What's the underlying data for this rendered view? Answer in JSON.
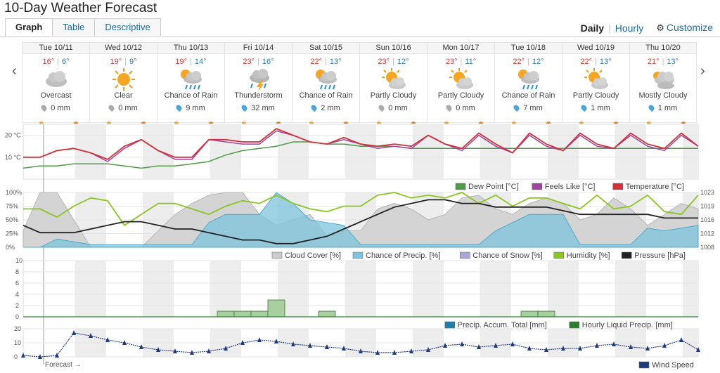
{
  "page": {
    "title": "10-Day Weather Forecast"
  },
  "tabs": [
    {
      "label": "Graph",
      "active": true
    },
    {
      "label": "Table",
      "active": false
    },
    {
      "label": "Descriptive",
      "active": false
    }
  ],
  "modes": {
    "daily": "Daily",
    "separator": "|",
    "hourly": "Hourly",
    "customize": "Customize"
  },
  "nav": {
    "prev": "‹",
    "next": "›"
  },
  "days": [
    {
      "date": "Tue 10/11",
      "hi": "16°",
      "lo": "6°",
      "condition": "Overcast",
      "precip": "0 mm",
      "icon": "cloud",
      "rain": false
    },
    {
      "date": "Wed 10/12",
      "hi": "19°",
      "lo": "9°",
      "condition": "Clear",
      "precip": "0 mm",
      "icon": "sun",
      "rain": false
    },
    {
      "date": "Thu 10/13",
      "hi": "19°",
      "lo": "14°",
      "condition": "Chance of Rain",
      "precip": "9 mm",
      "icon": "sun-cloud-rain",
      "rain": true
    },
    {
      "date": "Fri 10/14",
      "hi": "23°",
      "lo": "16°",
      "condition": "Thunderstorm",
      "precip": "32 mm",
      "icon": "storm",
      "rain": true
    },
    {
      "date": "Sat 10/15",
      "hi": "22°",
      "lo": "13°",
      "condition": "Chance of Rain",
      "precip": "2 mm",
      "icon": "sun-cloud-rain",
      "rain": true
    },
    {
      "date": "Sun 10/16",
      "hi": "23°",
      "lo": "12°",
      "condition": "Partly Cloudy",
      "precip": "0 mm",
      "icon": "sun-cloud",
      "rain": false
    },
    {
      "date": "Mon 10/17",
      "hi": "23°",
      "lo": "11°",
      "condition": "Partly Cloudy",
      "precip": "0 mm",
      "icon": "sun-cloud",
      "rain": false
    },
    {
      "date": "Tue 10/18",
      "hi": "22°",
      "lo": "12°",
      "condition": "Chance of Rain",
      "precip": "7 mm",
      "icon": "sun-cloud-rain",
      "rain": true
    },
    {
      "date": "Wed 10/19",
      "hi": "22°",
      "lo": "13°",
      "condition": "Partly Cloudy",
      "precip": "1 mm",
      "icon": "sun-cloud",
      "rain": true
    },
    {
      "date": "Thu 10/20",
      "hi": "21°",
      "lo": "13°",
      "condition": "Mostly Cloudy",
      "precip": "1 mm",
      "icon": "clouds",
      "rain": true
    }
  ],
  "colors": {
    "temp": "#d0313a",
    "feels": "#a0449e",
    "dew": "#4f9a46",
    "cloud": "#cccccc",
    "precip": "#7ec4de",
    "humidity": "#8ac521",
    "pressure": "#222222",
    "wind": "#1f3a7a",
    "accum": "#1f7fa3",
    "liquid": "#2e7d32"
  },
  "chart_data": [
    {
      "type": "line",
      "y_ticks": [
        "20 °C",
        "10 °C"
      ],
      "ylim": [
        0,
        25
      ],
      "series": [
        {
          "name": "Dew Point [°C]",
          "values": [
            5,
            6,
            6,
            7,
            7,
            7,
            6,
            5,
            6,
            6,
            7,
            8,
            11,
            13,
            14,
            15,
            17,
            17,
            16,
            16,
            15,
            15,
            15,
            14,
            14,
            14,
            14,
            14,
            14,
            14,
            14,
            14,
            14,
            14,
            14,
            14,
            14,
            14,
            14,
            14,
            14
          ]
        },
        {
          "name": "Feels Like [°C]",
          "values": [
            10,
            10,
            13,
            14,
            12,
            8,
            14,
            18,
            13,
            9,
            9,
            18,
            17,
            16,
            16,
            22,
            20,
            17,
            16,
            18,
            16,
            14,
            15,
            14,
            20,
            16,
            13,
            20,
            15,
            12,
            20,
            15,
            13,
            20,
            15,
            14,
            20,
            15,
            13,
            20,
            15
          ]
        },
        {
          "name": "Temperature [°C]",
          "values": [
            10,
            10,
            13,
            14,
            12,
            9,
            15,
            18,
            13,
            10,
            10,
            18,
            18,
            17,
            17,
            23,
            20,
            17,
            16,
            19,
            16,
            15,
            16,
            15,
            20,
            16,
            14,
            21,
            16,
            12,
            21,
            16,
            13,
            21,
            16,
            14,
            21,
            16,
            14,
            21,
            15
          ]
        }
      ]
    },
    {
      "type": "area",
      "left_ticks": [
        "100%",
        "75%",
        "50%",
        "25%",
        "0%"
      ],
      "right_ticks": [
        "1023",
        "1019",
        "1016",
        "1012",
        "1008"
      ],
      "series": [
        {
          "name": "Cloud Cover [%]",
          "values": [
            30,
            100,
            100,
            50,
            0,
            0,
            0,
            0,
            30,
            60,
            80,
            95,
            100,
            100,
            60,
            40,
            50,
            60,
            20,
            30,
            30,
            70,
            80,
            70,
            50,
            60,
            90,
            95,
            70,
            60,
            80,
            90,
            80,
            50,
            60,
            90,
            70,
            40,
            60,
            80,
            70
          ]
        },
        {
          "name": "Chance of Precip. [%]",
          "values": [
            0,
            0,
            15,
            10,
            5,
            5,
            5,
            5,
            5,
            5,
            5,
            45,
            60,
            60,
            60,
            100,
            80,
            50,
            45,
            40,
            5,
            5,
            5,
            5,
            5,
            5,
            5,
            5,
            30,
            45,
            60,
            60,
            60,
            5,
            5,
            5,
            5,
            35,
            30,
            35,
            40
          ]
        },
        {
          "name": "Chance of Snow [%]",
          "values": [
            0,
            0,
            0,
            0,
            0,
            0,
            0,
            0,
            0,
            0,
            0,
            0,
            0,
            0,
            0,
            0,
            0,
            0,
            0,
            0,
            0,
            0,
            0,
            0,
            0,
            0,
            0,
            0,
            0,
            0,
            0,
            0,
            0,
            0,
            0,
            0,
            0,
            0,
            0,
            0,
            0
          ]
        },
        {
          "name": "Humidity [%]",
          "values": [
            70,
            70,
            55,
            75,
            90,
            85,
            40,
            60,
            80,
            80,
            70,
            60,
            75,
            85,
            80,
            95,
            80,
            70,
            65,
            75,
            75,
            95,
            100,
            90,
            95,
            90,
            100,
            80,
            95,
            75,
            90,
            90,
            80,
            70,
            95,
            70,
            75,
            95,
            65,
            60,
            95
          ]
        },
        {
          "name": "Pressure [hPa]",
          "values": [
            1014,
            1012,
            1012,
            1012,
            1013,
            1014,
            1015,
            1015,
            1014,
            1013,
            1013,
            1012,
            1011,
            1010,
            1010,
            1009,
            1009,
            1010,
            1011,
            1013,
            1015,
            1017,
            1019,
            1020,
            1021,
            1021,
            1020,
            1020,
            1019,
            1019,
            1019,
            1019,
            1018,
            1017,
            1017,
            1017,
            1017,
            1017,
            1016,
            1016,
            1016
          ]
        }
      ]
    },
    {
      "type": "bar",
      "y_ticks": [
        "10",
        "8",
        "6",
        "4",
        "2",
        "0"
      ],
      "ylim": [
        0,
        10
      ],
      "series": [
        {
          "name": "Precip. Accum. Total [mm]",
          "values": [
            0,
            0,
            0,
            0,
            0,
            0,
            0,
            0,
            0,
            0,
            0,
            0,
            0,
            0,
            0,
            0,
            0,
            0,
            0,
            0,
            0,
            0,
            0,
            0,
            0,
            0,
            0,
            0,
            0,
            0,
            0,
            0,
            0,
            0,
            0,
            0,
            0,
            0,
            0,
            0,
            0
          ]
        },
        {
          "name": "Hourly Liquid Precip. [mm]",
          "values": [
            0,
            0,
            0,
            0,
            0,
            0,
            0,
            0,
            0,
            0,
            0,
            0,
            1,
            1,
            1,
            3,
            0,
            0,
            1,
            0,
            0,
            0,
            0,
            0,
            0,
            0,
            0,
            0,
            0,
            0,
            1,
            1,
            0,
            0,
            0,
            0,
            0,
            0,
            0,
            0,
            0
          ]
        }
      ]
    },
    {
      "type": "line",
      "y_ticks": [
        "20",
        "10",
        "0"
      ],
      "ylim": [
        0,
        20
      ],
      "series": [
        {
          "name": "Wind Speed",
          "values": [
            1,
            0,
            1,
            17,
            15,
            12,
            10,
            7,
            5,
            4,
            3,
            4,
            6,
            10,
            12,
            11,
            9,
            8,
            7,
            6,
            4,
            3,
            3,
            4,
            5,
            8,
            9,
            7,
            8,
            9,
            6,
            5,
            6,
            6,
            8,
            9,
            7,
            6,
            8,
            12,
            5
          ]
        }
      ]
    }
  ],
  "legends": {
    "temp": [
      "Dew Point [°C]",
      "Feels Like [°C]",
      "Temperature [°C]"
    ],
    "atmo": [
      "Cloud Cover [%]",
      "Chance of Precip. [%]",
      "Chance of Snow [%]",
      "Humidity [%]",
      "Pressure [hPa]"
    ],
    "precip": [
      "Precip. Accum. Total [mm]",
      "Hourly Liquid Precip. [mm]"
    ],
    "wind": [
      "Wind Speed"
    ]
  },
  "footer": {
    "forecast": "Forecast →"
  }
}
